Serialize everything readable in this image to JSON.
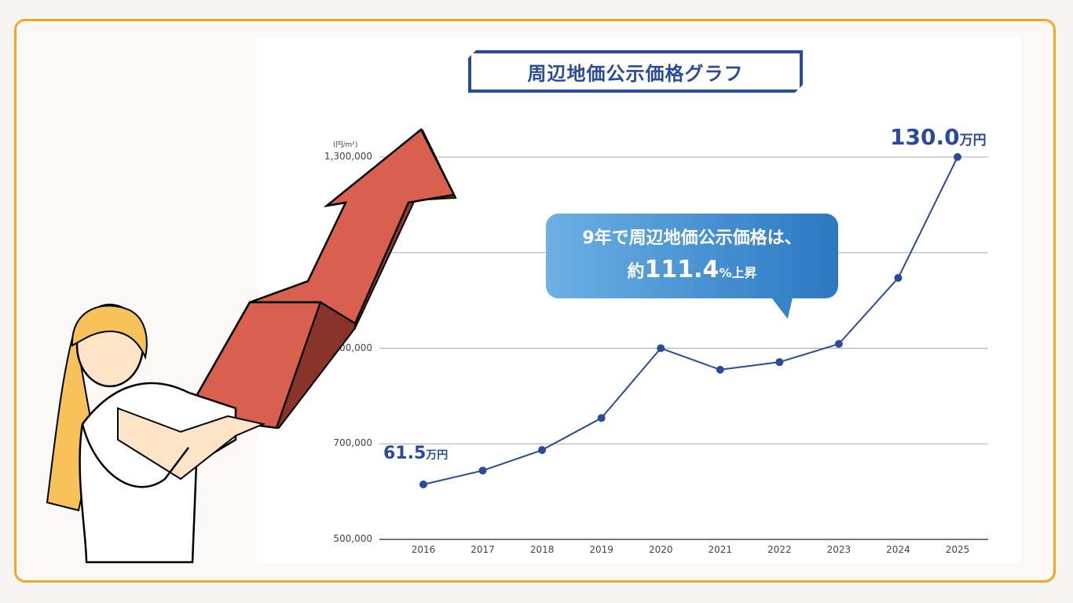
{
  "title": "周辺地価公示価格グラフ",
  "callout": {
    "line1": "9年で周辺地価公示価格は、",
    "line2_prefix": "約",
    "line2_value": "111.4",
    "line2_suffix": "%上昇"
  },
  "start_label": {
    "value": "61.5",
    "unit": "万円"
  },
  "end_label": {
    "value": "130.0",
    "unit": "万円"
  },
  "colors": {
    "line": "#2a4a9a",
    "frame": "#f5a623",
    "arrow": "#d9604f"
  },
  "chart_data": {
    "type": "line",
    "unit_label": "(円/m²)",
    "categories": [
      "2016",
      "2017",
      "2018",
      "2019",
      "2020",
      "2021",
      "2022",
      "2023",
      "2024",
      "2025"
    ],
    "values": [
      615000,
      644000,
      687000,
      754000,
      900000,
      855000,
      871000,
      909000,
      1047000,
      1300000
    ],
    "ylim": [
      500000,
      1300000
    ],
    "yticks": [
      500000,
      700000,
      900000,
      1100000,
      1300000
    ],
    "ytick_labels": [
      "500,000",
      "700,000",
      "900,000",
      "",
      "1,300,000"
    ],
    "grid": true
  }
}
